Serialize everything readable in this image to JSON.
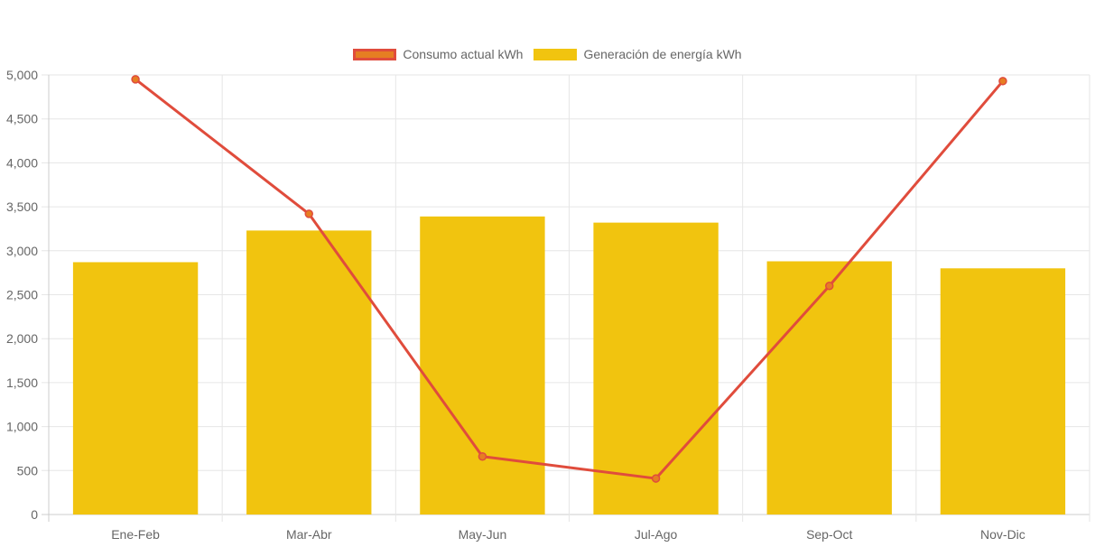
{
  "chart_data": {
    "type": "bar",
    "categories": [
      "Ene-Feb",
      "Mar-Abr",
      "May-Jun",
      "Jul-Ago",
      "Sep-Oct",
      "Nov-Dic"
    ],
    "series": [
      {
        "name": "Consumo actual kWh",
        "type": "line",
        "values": [
          4950,
          3420,
          660,
          410,
          2600,
          4930
        ],
        "color": "#e04c3c",
        "point_color": "#e67e22"
      },
      {
        "name": "Generación de energía kWh",
        "type": "bar",
        "values": [
          2870,
          3230,
          3390,
          3320,
          2880,
          2800
        ],
        "color": "#f1c40f"
      }
    ],
    "ylim": [
      0,
      5000
    ],
    "yticks": [
      "0",
      "500",
      "1,000",
      "1,500",
      "2,000",
      "2,500",
      "3,000",
      "3,500",
      "4,000",
      "4,500",
      "5,000"
    ],
    "grid": true,
    "legend_position": "top-center",
    "title": "",
    "xlabel": "",
    "ylabel": ""
  }
}
